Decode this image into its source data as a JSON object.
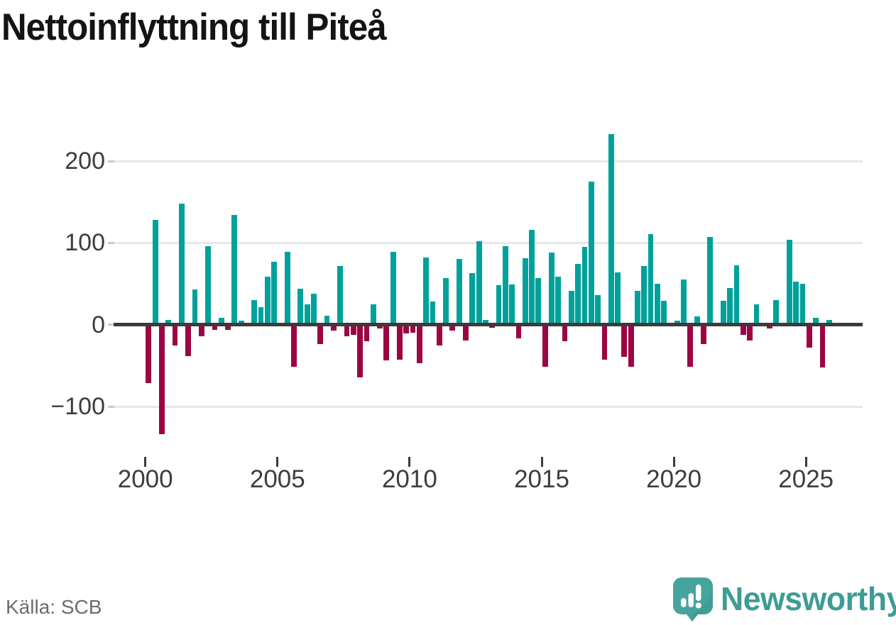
{
  "title": "Nettoinflyttning till Piteå",
  "source": "Källa: SCB",
  "branding": {
    "logo_text": "Newsworthy",
    "logo_icon": "speech-bubble-bar-chart-icon"
  },
  "colors": {
    "positive_bar": "#00A19A",
    "negative_bar": "#9D0442",
    "gridline": "#E7E7E7",
    "zero_axis": "#3B3B3B",
    "axis_text": "#3D3D3D",
    "source_text": "#6C6C75",
    "brand_teal": "#3E9C94"
  },
  "chart_data": {
    "type": "bar",
    "title": "Nettoinflyttning till Piteå",
    "xlabel": "",
    "ylabel": "",
    "legend": "none",
    "grid": "horizontal",
    "ylim": [
      -150,
      250
    ],
    "frequency": "quarterly",
    "start_year": 2000,
    "start_quarter": 1,
    "x_ticks": [
      {
        "label": "2000",
        "year": 2000
      },
      {
        "label": "2005",
        "year": 2005
      },
      {
        "label": "2010",
        "year": 2010
      },
      {
        "label": "2015",
        "year": 2015
      },
      {
        "label": "2020",
        "year": 2020
      },
      {
        "label": "2025",
        "year": 2025
      }
    ],
    "y_ticks": [
      {
        "label": "200",
        "value": 200
      },
      {
        "label": "100",
        "value": 100
      },
      {
        "label": "0",
        "value": 0
      },
      {
        "label": "−100",
        "value": -100
      }
    ],
    "values": [
      -71,
      128,
      -134,
      6,
      -25,
      148,
      -38,
      43,
      -14,
      96,
      -6,
      8,
      -6,
      134,
      5,
      0,
      30,
      21,
      59,
      77,
      0,
      89,
      -51,
      44,
      25,
      38,
      -24,
      11,
      -7,
      72,
      -14,
      -12,
      -64,
      -20,
      25,
      -5,
      -44,
      89,
      -43,
      -11,
      -10,
      -47,
      82,
      28,
      -25,
      57,
      -7,
      80,
      -19,
      63,
      102,
      6,
      -4,
      48,
      96,
      49,
      -17,
      81,
      116,
      57,
      -51,
      88,
      59,
      -20,
      41,
      74,
      95,
      175,
      36,
      -43,
      233,
      64,
      -39,
      -51,
      41,
      72,
      111,
      50,
      29,
      0,
      5,
      55,
      -51,
      10,
      -24,
      107,
      0,
      29,
      45,
      73,
      -12,
      -19,
      25,
      0,
      -5,
      30,
      0,
      104,
      53,
      50,
      -28,
      8,
      -52,
      6
    ]
  }
}
